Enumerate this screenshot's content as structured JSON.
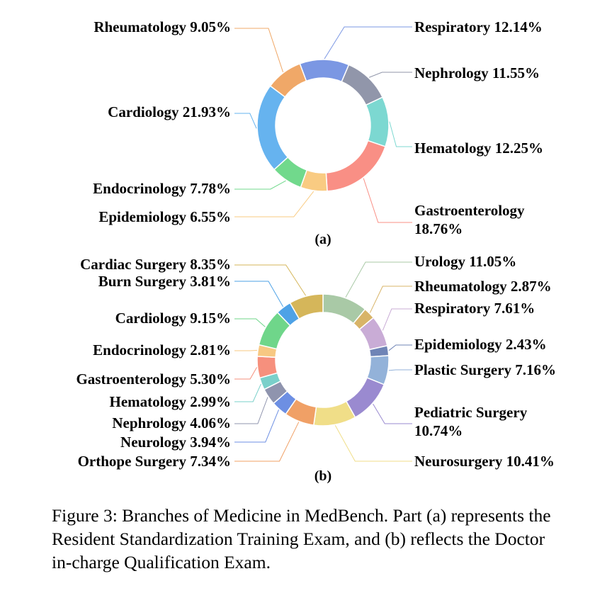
{
  "chart_data": [
    {
      "type": "pie",
      "panel_label": "(a)",
      "categories": [
        "Respiratory",
        "Nephrology",
        "Hematology",
        "Gastroenterology",
        "Epidemiology",
        "Endocrinology",
        "Cardiology",
        "Rheumatology"
      ],
      "values": [
        12.14,
        11.55,
        12.25,
        18.76,
        6.55,
        7.78,
        21.93,
        9.05
      ],
      "labels": [
        "Respiratory 12.14%",
        "Nephrology 11.55%",
        "Hematology 12.25%",
        "Gastroenterology 18.76%",
        "Epidemiology 6.55%",
        "Endocrinology 7.78%",
        "Cardiology 21.93%",
        "Rheumatology 9.05%"
      ],
      "colors": [
        "#7b97e3",
        "#9196aa",
        "#7cd8d1",
        "#f98f85",
        "#f9cb82",
        "#71d98c",
        "#66b3ef",
        "#f0a868"
      ]
    },
    {
      "type": "pie",
      "panel_label": "(b)",
      "categories": [
        "Urology",
        "Rheumatology",
        "Respiratory",
        "Epidemiology",
        "Plastic Surgery",
        "Pediatric Surgery",
        "Neurosurgery",
        "Orthope Surgery",
        "Neurology",
        "Nephrology",
        "Hematology",
        "Gastroenterology",
        "Endocrinology",
        "Cardiology",
        "Burn Surgery",
        "Cardiac Surgery"
      ],
      "values": [
        11.05,
        2.87,
        7.61,
        2.43,
        7.16,
        10.74,
        10.41,
        7.34,
        3.94,
        4.06,
        2.99,
        5.3,
        2.81,
        9.15,
        3.81,
        8.35
      ],
      "labels": [
        "Urology 11.05%",
        "Rheumatology 2.87%",
        "Respiratory 7.61%",
        "Epidemiology 2.43%",
        "Plastic Surgery 7.16%",
        "Pediatric Surgery 10.74%",
        "Neurosurgery 10.41%",
        "Orthope Surgery 7.34%",
        "Neurology 3.94%",
        "Nephrology 4.06%",
        "Hematology 2.99%",
        "Gastroenterology 5.30%",
        "Endocrinology 2.81%",
        "Cardiology 9.15%",
        "Burn Surgery 3.81%",
        "Cardiac Surgery 8.35%"
      ],
      "colors": [
        "#a9c9a6",
        "#d8b468",
        "#c9acd6",
        "#6f84b6",
        "#93b2d9",
        "#9a8ad0",
        "#f0de88",
        "#f0a066",
        "#6d8fe3",
        "#8f94ae",
        "#7ad0ca",
        "#f6907d",
        "#f7c882",
        "#6fd68a",
        "#4ea2e6",
        "#d5b65a"
      ]
    }
  ],
  "caption": "Figure 3: Branches of Medicine in MedBench. Part (a) represents the Resident Standardization Training Exam, and (b) reflects the Doctor in-charge Qualification Exam."
}
